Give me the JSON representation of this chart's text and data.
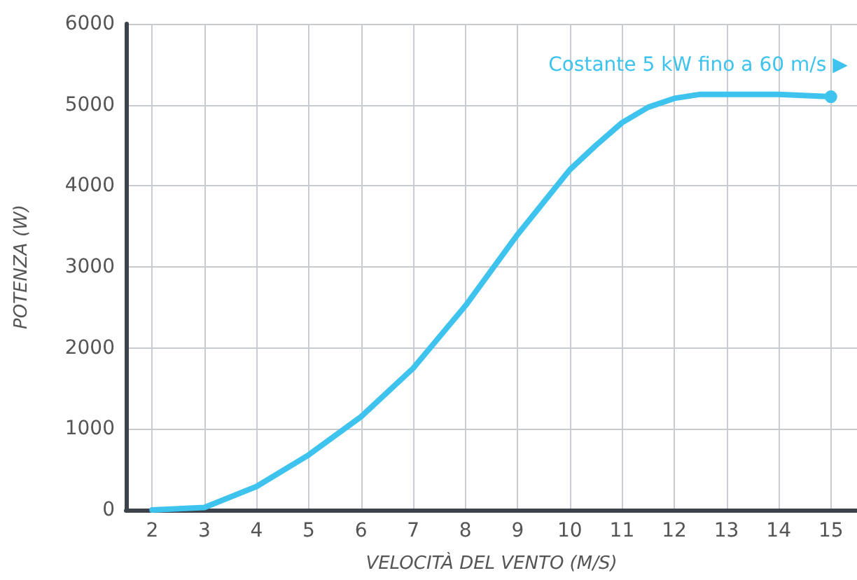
{
  "chart_data": {
    "type": "line",
    "xlabel": "VELOCITÀ DEL VENTO (M/S)",
    "ylabel": "POTENZA (W)",
    "x": [
      2,
      3,
      4,
      5,
      6,
      7,
      8,
      9,
      10,
      10.5,
      11,
      11.5,
      12,
      12.5,
      13,
      14,
      15
    ],
    "series": [
      {
        "color": "#3ec3ee",
        "values": [
          0,
          30,
          290,
          680,
          1150,
          1750,
          2520,
          3400,
          4200,
          4500,
          4780,
          4970,
          5080,
          5130,
          5130,
          5130,
          5100
        ]
      }
    ],
    "xlim": [
      1.5,
      15.5
    ],
    "xticks": [
      2,
      3,
      4,
      5,
      6,
      7,
      8,
      9,
      10,
      11,
      12,
      13,
      14,
      15
    ],
    "ylim": [
      0,
      6000
    ],
    "yticks": [
      0,
      1000,
      2000,
      3000,
      4000,
      5000,
      6000
    ],
    "grid": true,
    "marker": "none",
    "line_style": "solid",
    "annotations": [
      {
        "text": "Costante 5 kW fino a 60 m/s ▶",
        "x": 15,
        "y": 5100
      }
    ]
  }
}
